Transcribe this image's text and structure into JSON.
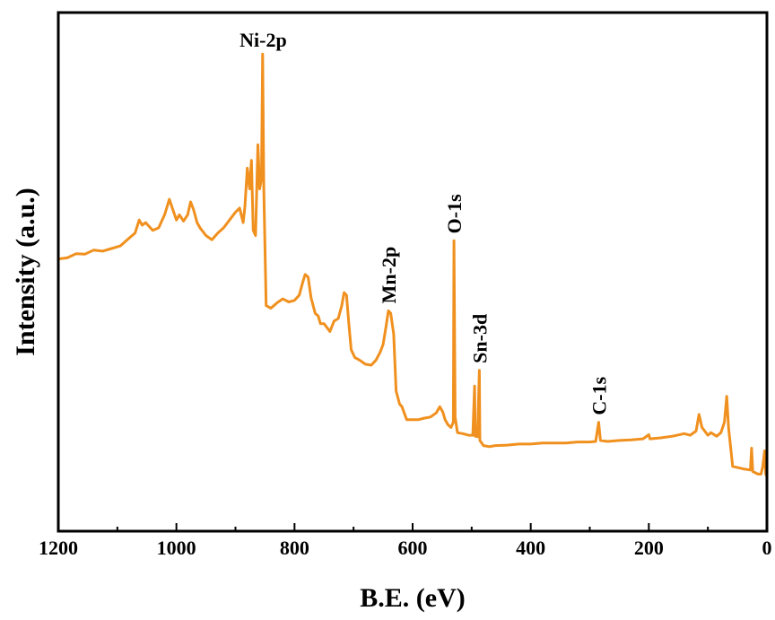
{
  "chart_data": {
    "type": "line",
    "xlabel": "B.E. (eV)",
    "ylabel": "Intensity (a.u.)",
    "x_reversed": true,
    "xlim": [
      1200,
      0
    ],
    "ylim": [
      0,
      100
    ],
    "y_ticks_shown": false,
    "grid": false,
    "legend": "none",
    "x_ticks": [
      1200,
      1000,
      800,
      600,
      400,
      200,
      0
    ],
    "series": [
      {
        "color": "#F0901E",
        "points": [
          [
            1200,
            52.5
          ],
          [
            1185,
            52.7
          ],
          [
            1170,
            53.5
          ],
          [
            1155,
            53.4
          ],
          [
            1140,
            54.2
          ],
          [
            1125,
            54.0
          ],
          [
            1110,
            54.5
          ],
          [
            1095,
            55.0
          ],
          [
            1080,
            56.5
          ],
          [
            1070,
            57.5
          ],
          [
            1063,
            60.0
          ],
          [
            1058,
            59.0
          ],
          [
            1052,
            59.5
          ],
          [
            1040,
            58.0
          ],
          [
            1030,
            58.5
          ],
          [
            1020,
            61.0
          ],
          [
            1012,
            64.0
          ],
          [
            1006,
            62.0
          ],
          [
            1000,
            60.0
          ],
          [
            995,
            61.0
          ],
          [
            988,
            59.8
          ],
          [
            981,
            61.0
          ],
          [
            976,
            63.5
          ],
          [
            971,
            62.0
          ],
          [
            965,
            59.5
          ],
          [
            960,
            58.5
          ],
          [
            950,
            57.0
          ],
          [
            940,
            56.2
          ],
          [
            930,
            57.5
          ],
          [
            920,
            58.5
          ],
          [
            910,
            60.0
          ],
          [
            900,
            61.5
          ],
          [
            893,
            62.3
          ],
          [
            887,
            59.5
          ],
          [
            884,
            62.5
          ],
          [
            880,
            70.0
          ],
          [
            876,
            66.0
          ],
          [
            873,
            71.5
          ],
          [
            870,
            58.0
          ],
          [
            866,
            57.0
          ],
          [
            862,
            74.5
          ],
          [
            859,
            66.0
          ],
          [
            856,
            68.0
          ],
          [
            854,
            92.0
          ],
          [
            852,
            66.0
          ],
          [
            848,
            43.5
          ],
          [
            840,
            43.0
          ],
          [
            830,
            44.0
          ],
          [
            820,
            44.8
          ],
          [
            810,
            44.2
          ],
          [
            800,
            44.5
          ],
          [
            792,
            45.5
          ],
          [
            786,
            48.0
          ],
          [
            782,
            49.5
          ],
          [
            777,
            49.0
          ],
          [
            772,
            45.0
          ],
          [
            765,
            42.0
          ],
          [
            760,
            41.5
          ],
          [
            756,
            40.0
          ],
          [
            750,
            40.0
          ],
          [
            740,
            38.5
          ],
          [
            733,
            40.5
          ],
          [
            726,
            41.0
          ],
          [
            720,
            43.5
          ],
          [
            716,
            46.0
          ],
          [
            712,
            45.5
          ],
          [
            708,
            40.0
          ],
          [
            704,
            35.0
          ],
          [
            698,
            33.5
          ],
          [
            690,
            33.0
          ],
          [
            680,
            32.2
          ],
          [
            670,
            32.0
          ],
          [
            662,
            33.0
          ],
          [
            655,
            34.5
          ],
          [
            650,
            36.0
          ],
          [
            645,
            39.5
          ],
          [
            641,
            42.5
          ],
          [
            637,
            42.0
          ],
          [
            632,
            38.0
          ],
          [
            628,
            27.0
          ],
          [
            622,
            24.5
          ],
          [
            618,
            24.0
          ],
          [
            610,
            21.5
          ],
          [
            600,
            21.5
          ],
          [
            590,
            21.5
          ],
          [
            580,
            21.8
          ],
          [
            570,
            22.0
          ],
          [
            560,
            22.8
          ],
          [
            554,
            24.0
          ],
          [
            549,
            23.0
          ],
          [
            545,
            21.5
          ],
          [
            540,
            20.5
          ],
          [
            535,
            20.0
          ],
          [
            531,
            21.0
          ],
          [
            530,
            56.0
          ],
          [
            528,
            22.0
          ],
          [
            524,
            19.0
          ],
          [
            515,
            18.8
          ],
          [
            505,
            18.5
          ],
          [
            498,
            18.5
          ],
          [
            495,
            28.0
          ],
          [
            494,
            18.3
          ],
          [
            490,
            18.2
          ],
          [
            487,
            31.0
          ],
          [
            486,
            17.5
          ],
          [
            480,
            16.5
          ],
          [
            470,
            16.3
          ],
          [
            460,
            16.5
          ],
          [
            440,
            16.6
          ],
          [
            420,
            16.8
          ],
          [
            400,
            16.8
          ],
          [
            380,
            17.0
          ],
          [
            360,
            17.0
          ],
          [
            340,
            17.0
          ],
          [
            320,
            17.2
          ],
          [
            300,
            17.2
          ],
          [
            290,
            17.3
          ],
          [
            285,
            21.0
          ],
          [
            282,
            17.5
          ],
          [
            270,
            17.3
          ],
          [
            250,
            17.5
          ],
          [
            230,
            17.6
          ],
          [
            210,
            17.8
          ],
          [
            200,
            18.6
          ],
          [
            198,
            17.8
          ],
          [
            180,
            18.0
          ],
          [
            160,
            18.3
          ],
          [
            140,
            18.8
          ],
          [
            130,
            18.5
          ],
          [
            120,
            19.3
          ],
          [
            115,
            22.5
          ],
          [
            110,
            20.0
          ],
          [
            100,
            18.5
          ],
          [
            95,
            19.0
          ],
          [
            85,
            18.3
          ],
          [
            78,
            19.0
          ],
          [
            72,
            21.0
          ],
          [
            68,
            26.0
          ],
          [
            65,
            20.0
          ],
          [
            58,
            12.5
          ],
          [
            40,
            12.0
          ],
          [
            28,
            11.8
          ],
          [
            26,
            16.0
          ],
          [
            24,
            11.5
          ],
          [
            15,
            11.0
          ],
          [
            10,
            11.0
          ],
          [
            7,
            12.5
          ],
          [
            4,
            15.5
          ],
          [
            2,
            11.0
          ],
          [
            0,
            10.5
          ]
        ]
      }
    ],
    "annotations": [
      {
        "text": "Ni-2p",
        "x": 853,
        "y": 92,
        "rotated": false
      },
      {
        "text": "Mn-2p",
        "x": 641,
        "y": 42.5,
        "rotated": true
      },
      {
        "text": "O-1s",
        "x": 530,
        "y": 56,
        "rotated": true
      },
      {
        "text": "Sn-3d",
        "x": 487,
        "y": 31,
        "rotated": true
      },
      {
        "text": "C-1s",
        "x": 285,
        "y": 21,
        "rotated": true
      }
    ]
  }
}
